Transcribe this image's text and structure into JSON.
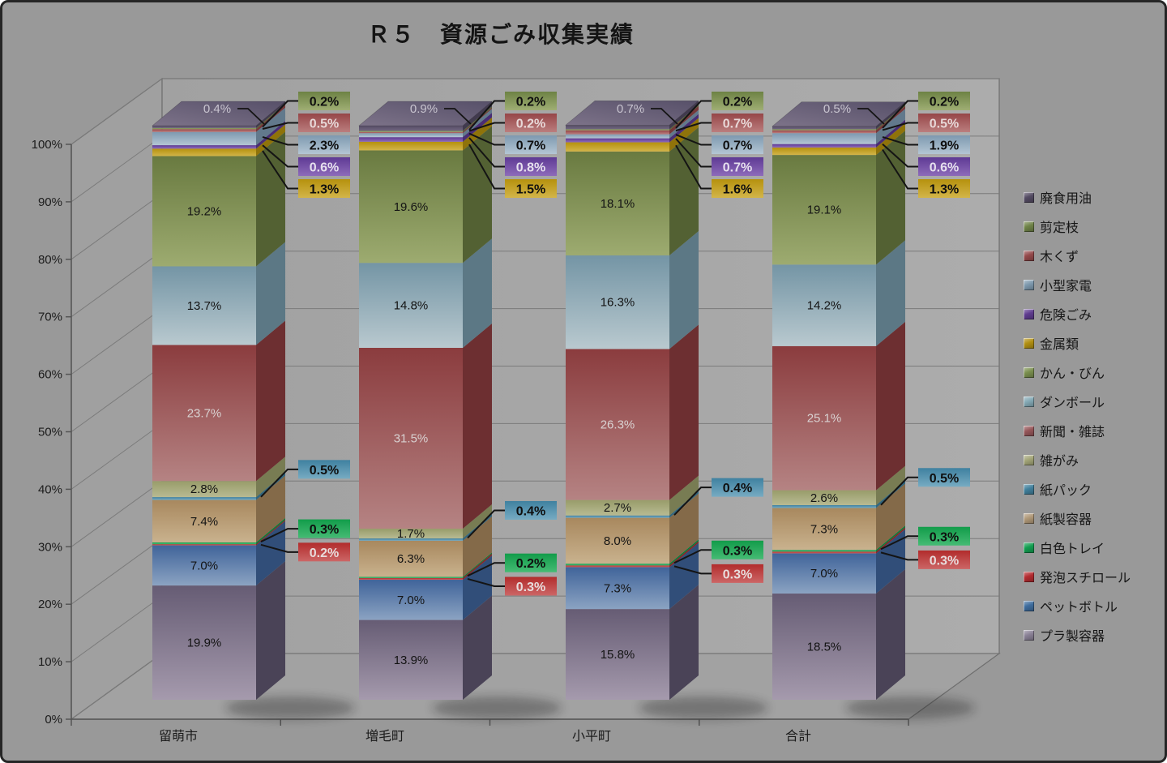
{
  "window": {
    "background": "#999999",
    "border_color": "#262626"
  },
  "colors": {
    "background": "#999999",
    "side_wall": "#a0a0a0",
    "back_wall_light": "#acacac",
    "back_wall_dark": "#a1a1a1",
    "floor": "#a2a2a2",
    "gridline": "#7b7b7b",
    "axis_line": "#555555",
    "wall_outline": "#6e6e6e",
    "leader_line": "#141414",
    "tick_text": "#1c1c1c",
    "title_text": "#141414"
  },
  "chart_data": {
    "type": "bar",
    "subtype": "3d-100-percent-stacked-column",
    "title": "Ｒ５　資源ごみ収集実績",
    "categories": [
      "留萌市",
      "増毛町",
      "小平町",
      "合計"
    ],
    "y_axis": {
      "unit": "%",
      "min": 0,
      "max": 100,
      "ticks": [
        "0%",
        "10%",
        "20%",
        "30%",
        "40%",
        "50%",
        "60%",
        "70%",
        "80%",
        "90%",
        "100%"
      ]
    },
    "grid": true,
    "legend_position": "right",
    "legend_order_top_to_bottom": [
      "廃食用油",
      "剪定枝",
      "木くず",
      "小型家電",
      "危険ごみ",
      "金属類",
      "かん・びん",
      "ダンボール",
      "新聞・雑誌",
      "雑がみ",
      "紙パック",
      "紙製容器",
      "白色トレイ",
      "発泡スチロール",
      "ペットボトル",
      "プラ製容器"
    ],
    "series": [
      {
        "name": "プラ製容器",
        "values": [
          19.9,
          13.9,
          15.8,
          18.5
        ],
        "swatch": "#8a8196",
        "gradient": [
          "#665c74",
          "#a59aad"
        ],
        "side": "#4a4357",
        "label": "inside",
        "text_color": "#141414"
      },
      {
        "name": "ペットボトル",
        "values": [
          7.0,
          7.0,
          7.3,
          7.0
        ],
        "swatch": "#3f6d9e",
        "gradient": [
          "#40649a",
          "#8ba3c2"
        ],
        "side": "#314e79",
        "label": "inside",
        "text_color": "#141414"
      },
      {
        "name": "発泡スチロール",
        "values": [
          0.2,
          0.3,
          0.3,
          0.3
        ],
        "swatch": "#b32b30",
        "gradient": [
          "#b22c2c",
          "#cc6666"
        ],
        "side": "#8a2222",
        "label": "callout-mid",
        "text_color": "#e8dcdc"
      },
      {
        "name": "白色トレイ",
        "values": [
          0.3,
          0.2,
          0.3,
          0.3
        ],
        "swatch": "#129e50",
        "gradient": [
          "#129c4a",
          "#45bb74"
        ],
        "side": "#0d7a39",
        "label": "callout-mid",
        "text_color": "#0f0f0f"
      },
      {
        "name": "紙製容器",
        "values": [
          7.4,
          6.3,
          8.0,
          7.3
        ],
        "swatch": "#af9878",
        "gradient": [
          "#a8885e",
          "#c9b28e"
        ],
        "side": "#846a49",
        "label": "inside",
        "text_color": "#141414"
      },
      {
        "name": "紙パック",
        "values": [
          0.5,
          0.4,
          0.4,
          0.5
        ],
        "swatch": "#41809c",
        "gradient": [
          "#3f81a0",
          "#77abc2"
        ],
        "side": "#32667e",
        "label": "callout-mid",
        "text_color": "#0f0f0f"
      },
      {
        "name": "雑がみ",
        "values": [
          2.8,
          1.7,
          2.7,
          2.6
        ],
        "swatch": "#a3a578",
        "gradient": [
          "#989c6a",
          "#b8ba92"
        ],
        "side": "#787c53",
        "label": "inside",
        "text_color": "#141414"
      },
      {
        "name": "新聞・雑誌",
        "values": [
          23.7,
          31.5,
          26.3,
          25.1
        ],
        "swatch": "#96575a",
        "gradient": [
          "#8b3c3e",
          "#b58383"
        ],
        "side": "#6d2f31",
        "label": "inside",
        "text_color": "#d9d2d2"
      },
      {
        "name": "ダンボール",
        "values": [
          13.7,
          14.8,
          16.3,
          14.2
        ],
        "swatch": "#84a9b5",
        "gradient": [
          "#7495a5",
          "#b9c9cf"
        ],
        "side": "#5c7885",
        "label": "inside",
        "text_color": "#141414"
      },
      {
        "name": "かん・びん",
        "values": [
          19.2,
          19.6,
          18.1,
          19.1
        ],
        "swatch": "#7a8f4e",
        "gradient": [
          "#697a40",
          "#9dab70"
        ],
        "side": "#536133",
        "label": "inside",
        "text_color": "#141414"
      },
      {
        "name": "金属類",
        "values": [
          1.3,
          1.5,
          1.6,
          1.3
        ],
        "swatch": "#b18f12",
        "gradient": [
          "#b5910d",
          "#d3b54a"
        ],
        "side": "#8f730a",
        "label": "callout-top",
        "text_color": "#0f0f0f"
      },
      {
        "name": "危険ごみ",
        "values": [
          0.6,
          0.8,
          0.7,
          0.6
        ],
        "swatch": "#5f3c8f",
        "gradient": [
          "#5e3a94",
          "#8e6bba"
        ],
        "side": "#492d75",
        "label": "callout-top",
        "text_color": "#e6e0ee"
      },
      {
        "name": "小型家電",
        "values": [
          2.3,
          0.7,
          0.7,
          1.9
        ],
        "swatch": "#7d98ad",
        "gradient": [
          "#7e99b0",
          "#b4c6d4"
        ],
        "side": "#62798c",
        "label": "callout-top",
        "text_color": "#0f0f0f"
      },
      {
        "name": "木くず",
        "values": [
          0.5,
          0.2,
          0.7,
          0.5
        ],
        "swatch": "#94494b",
        "gradient": [
          "#964648",
          "#bb7e7e"
        ],
        "side": "#763839",
        "label": "callout-top",
        "text_color": "#e8d8d8"
      },
      {
        "name": "剪定枝",
        "values": [
          0.2,
          0.2,
          0.2,
          0.2
        ],
        "swatch": "#6f8348",
        "gradient": [
          "#6d8244",
          "#9fae74"
        ],
        "side": "#566636",
        "label": "callout-top",
        "text_color": "#0f0f0f"
      },
      {
        "name": "廃食用油",
        "values": [
          0.4,
          0.9,
          0.7,
          0.5
        ],
        "swatch": "#544b63",
        "gradient": [
          "#564d64",
          "#6f6580"
        ],
        "side": "#413a4e",
        "top_face": [
          "#7d7389",
          "#575069"
        ],
        "label": "top-face",
        "text_color": "#c9c5d0"
      }
    ]
  }
}
